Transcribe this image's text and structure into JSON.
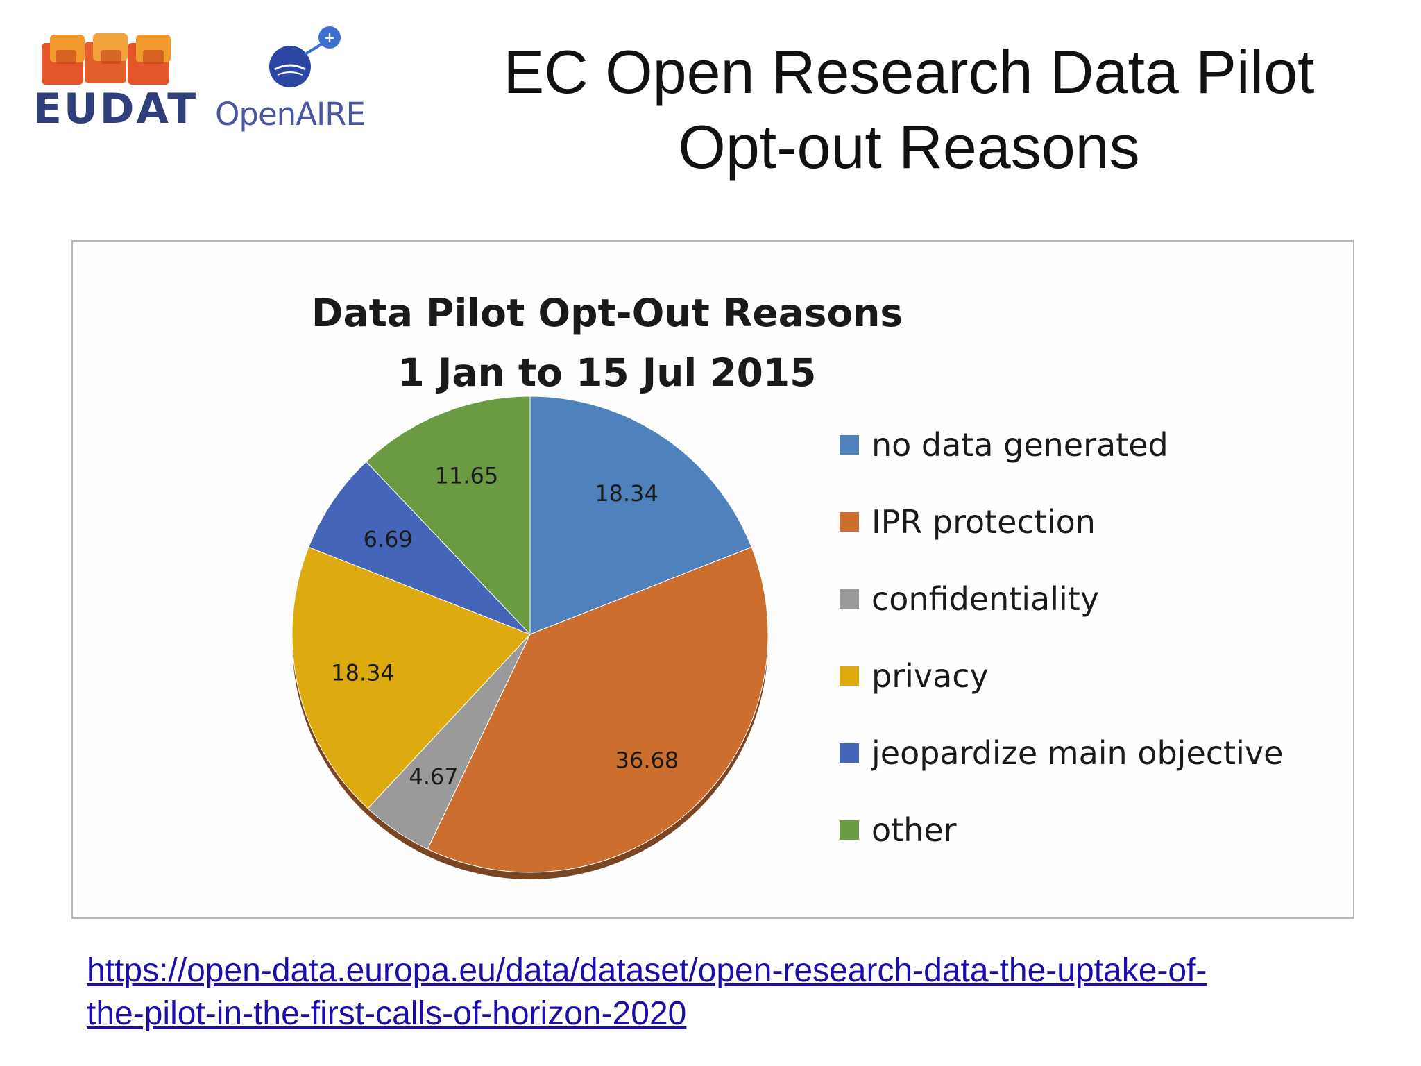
{
  "slide": {
    "title_line1": "EC Open Research Data Pilot",
    "title_line2": "Opt-out Reasons"
  },
  "logos": {
    "eudat": "EUDAT",
    "openaire": "OpenAIRE"
  },
  "chart_data": {
    "type": "pie",
    "title_line1": "Data Pilot Opt-Out Reasons",
    "title_line2": "1 Jan to 15 Jul 2015",
    "legend_position": "right",
    "slices": [
      {
        "label": "no data generated",
        "value": 18.34,
        "color": "#4f81bd"
      },
      {
        "label": "IPR protection",
        "value": 36.68,
        "color": "#cc6e2d"
      },
      {
        "label": "confidentiality",
        "value": 4.67,
        "color": "#9a9a9a"
      },
      {
        "label": "privacy",
        "value": 18.34,
        "color": "#ddaa10"
      },
      {
        "label": "jeopardize main objective",
        "value": 6.69,
        "color": "#4566b8"
      },
      {
        "label": "other",
        "value": 11.65,
        "color": "#6a9a42"
      }
    ]
  },
  "source": {
    "url_line1": "https://open-data.europa.eu/data/dataset/open-research-data-the-uptake-of-",
    "url_line2": "the-pilot-in-the-first-calls-of-horizon-2020"
  }
}
